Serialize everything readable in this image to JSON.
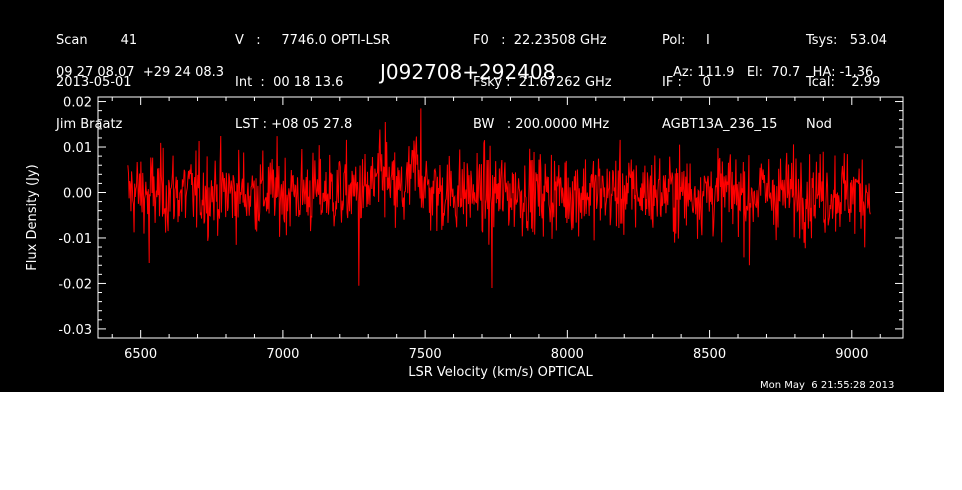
{
  "header": {
    "col1": [
      "Scan        41",
      "2013-05-01",
      "Jim Braatz"
    ],
    "col2": [
      "V   :     7746.0 OPTI-LSR",
      "Int  :  00 18 13.6",
      "LST : +08 05 27.8"
    ],
    "col3": [
      "F0   :  22.23508 GHz",
      "Fsky :  21.67262 GHz",
      "BW   : 200.0000 MHz"
    ],
    "col4": [
      "Pol:     I",
      "IF :     0",
      "AGBT13A_236_15"
    ],
    "col5": [
      "Tsys:   53.04",
      "Tcal:    2.99",
      "Nod"
    ],
    "coords": "09 27 08.07  +29 24 08.3",
    "source": "J092708+292408",
    "azelha": "Az: 111.9   El:  70.7   HA: -1.36"
  },
  "timestamp": "Mon May  6 21:55:28 2013",
  "colors": {
    "background": "#000000",
    "axes": "#ffffff",
    "series": "#ff0000"
  },
  "chart_data": {
    "type": "line",
    "title": "J092708+292408",
    "xlabel": "LSR Velocity (km/s) OPTICAL",
    "ylabel": "Flux Density (Jy)",
    "xlim": [
      6350,
      9180
    ],
    "ylim": [
      -0.032,
      0.021
    ],
    "x_ticks": [
      6500,
      7000,
      7500,
      8000,
      8500,
      9000
    ],
    "y_ticks": [
      0.02,
      0.01,
      0.0,
      -0.01,
      -0.02,
      -0.03
    ],
    "y_tick_labels": [
      "0.02",
      "0.01",
      "0.00",
      "-0.01",
      "-0.02",
      "-0.03"
    ],
    "series": [
      {
        "x_start": 6455,
        "x_end": 9065,
        "n_points": 1200,
        "noise_rms": 0.0045,
        "baseline": 0.0,
        "features": [
          {
            "x": 7470,
            "width": 25,
            "amplitude": 0.006
          },
          {
            "x": 7345,
            "width": 30,
            "amplitude": 0.003
          }
        ],
        "notable_points": [
          {
            "x": 7485,
            "y": 0.0185
          },
          {
            "x": 7360,
            "y": 0.0155
          },
          {
            "x": 7267,
            "y": -0.0205
          },
          {
            "x": 7735,
            "y": -0.021
          },
          {
            "x": 6530,
            "y": -0.0155
          },
          {
            "x": 8640,
            "y": -0.016
          }
        ]
      }
    ]
  }
}
